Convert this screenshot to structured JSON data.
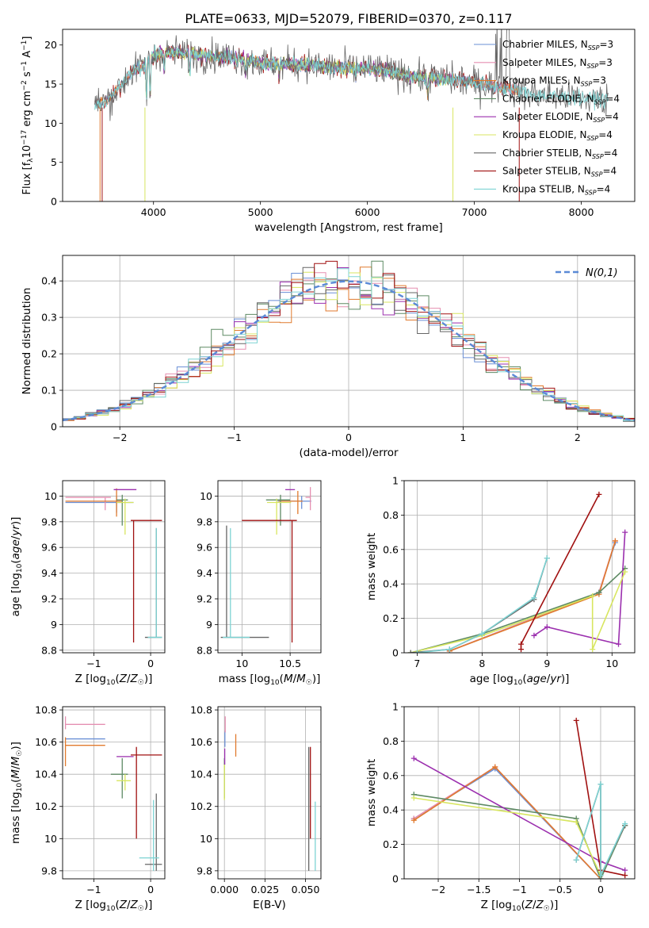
{
  "figure_title": "PLATE=0633, MJD=52079, FIBERID=0370, z=0.117",
  "series_colors": [
    "#6a8fd6",
    "#e58fb1",
    "#e07a2e",
    "#5e8a64",
    "#9b2fae",
    "#d8e660",
    "#666666",
    "#a01010",
    "#7dd3d3"
  ],
  "legend_labels": [
    "Chabrier MILES, N_SSP=3",
    "Salpeter MILES, N_SSP=3",
    "Kroupa MILES, N_SSP=3",
    "Chabrier ELODIE, N_SSP=4",
    "Salpeter ELODIE, N_SSP=4",
    "Kroupa ELODIE, N_SSP=4",
    "Chabrier STELIB, N_SSP=4",
    "Salpeter STELIB, N_SSP=4",
    "Kroupa STELIB, N_SSP=4"
  ],
  "chart_data": [
    {
      "id": "spectrum",
      "type": "line",
      "xlabel": "wavelength [Angstrom, rest frame]",
      "ylabel": "Flux [f_λ 10^-17 erg cm^-2 s^-1 A^-1]",
      "xlim": [
        3150,
        8500
      ],
      "ylim": [
        0,
        22
      ],
      "xticks": [
        4000,
        5000,
        6000,
        7000,
        8000
      ],
      "yticks": [
        0,
        5,
        10,
        15,
        20
      ],
      "grid": false,
      "legend": "top-right",
      "continuum": {
        "x": [
          3450,
          3600,
          3800,
          3900,
          4000,
          4100,
          4300,
          4500,
          4700,
          4900,
          5000,
          5200,
          5400,
          5600,
          5800,
          6000,
          6200,
          6400,
          6600,
          6800,
          7000,
          7200,
          7400,
          7600,
          7800,
          8000,
          8200
        ],
        "y": [
          12.3,
          13.2,
          16.6,
          17.3,
          18.6,
          19.2,
          18.9,
          18.6,
          18.5,
          18.0,
          17.7,
          17.6,
          17.5,
          17.2,
          17.1,
          17.0,
          16.6,
          16.0,
          15.8,
          15.6,
          15.2,
          14.6,
          14.1,
          13.6,
          13.4,
          13.2,
          13.0
        ]
      }
    },
    {
      "id": "residuals",
      "type": "line",
      "xlabel": "(data-model)/error",
      "ylabel": "Normed distribution",
      "xlim": [
        -2.5,
        2.5
      ],
      "ylim": [
        0,
        0.47
      ],
      "xticks": [
        -2,
        -1,
        0,
        1,
        2
      ],
      "yticks": [
        0.0,
        0.1,
        0.2,
        0.3,
        0.4
      ],
      "grid": true,
      "legend": "top-right",
      "reference_label": "N(0,1)"
    },
    {
      "id": "z-age",
      "type": "scatter",
      "xlabel": "Z [log10(Z/Z☉)]",
      "ylabel": "age [log10(age/yr)]",
      "xlim": [
        -1.55,
        0.25
      ],
      "ylim": [
        8.78,
        10.12
      ],
      "xticks": [
        -1,
        0
      ],
      "yticks": [
        8.8,
        9.0,
        9.2,
        9.4,
        9.6,
        9.8,
        10.0
      ],
      "grid": true,
      "points": [
        {
          "x": -0.6,
          "y": 9.95,
          "xerr": [
            0.9,
            0.3
          ],
          "yerr": [
            0.08,
            0.05
          ],
          "series": 0
        },
        {
          "x": -0.8,
          "y": 9.99,
          "xerr": [
            0.7,
            0.1
          ],
          "yerr": [
            0.1,
            0.0
          ],
          "series": 1
        },
        {
          "x": -0.6,
          "y": 9.96,
          "xerr": [
            0.9,
            0.1
          ],
          "yerr": [
            0.12,
            0.1
          ],
          "series": 2
        },
        {
          "x": -0.5,
          "y": 9.97,
          "xerr": [
            0.1,
            0.1
          ],
          "yerr": [
            0.2,
            0.04
          ],
          "series": 3
        },
        {
          "x": -0.45,
          "y": 10.05,
          "xerr": [
            0.2,
            0.2
          ],
          "yerr": [
            0.0,
            0.0
          ],
          "series": 4
        },
        {
          "x": -0.45,
          "y": 9.95,
          "xerr": [
            0.15,
            0.15
          ],
          "yerr": [
            0.25,
            0.03
          ],
          "series": 5
        },
        {
          "x": 0.1,
          "y": 8.9,
          "xerr": [
            0.2,
            0.1
          ],
          "yerr": [
            0.0,
            0.85
          ],
          "series": 6
        },
        {
          "x": -0.3,
          "y": 9.81,
          "xerr": [
            0.05,
            0.5
          ],
          "yerr": [
            0.95,
            0.0
          ],
          "series": 7
        },
        {
          "x": 0.1,
          "y": 8.9,
          "xerr": [
            0.15,
            0.1
          ],
          "yerr": [
            0.0,
            0.85
          ],
          "series": 8
        }
      ]
    },
    {
      "id": "mass-age",
      "type": "scatter",
      "xlabel": "mass [log10(M/M☉)]",
      "ylabel": "",
      "xlim": [
        9.75,
        10.82
      ],
      "ylim": [
        8.78,
        10.12
      ],
      "xticks": [
        10.0,
        10.5
      ],
      "yticks": [
        8.8,
        9.0,
        9.2,
        9.4,
        9.6,
        9.8,
        10.0
      ],
      "grid": true,
      "points": [
        {
          "x": 10.62,
          "y": 9.96,
          "xerr": [
            0.25,
            0.1
          ],
          "yerr": [
            0.06,
            0.04
          ],
          "series": 0
        },
        {
          "x": 10.71,
          "y": 9.99,
          "xerr": [
            0.05,
            0.0
          ],
          "yerr": [
            0.1,
            0.08
          ],
          "series": 1
        },
        {
          "x": 10.58,
          "y": 9.96,
          "xerr": [
            0.2,
            0.05
          ],
          "yerr": [
            0.1,
            0.08
          ],
          "series": 2
        },
        {
          "x": 10.4,
          "y": 9.97,
          "xerr": [
            0.15,
            0.1
          ],
          "yerr": [
            0.2,
            0.04
          ],
          "series": 3
        },
        {
          "x": 10.5,
          "y": 10.05,
          "xerr": [
            0.05,
            0.05
          ],
          "yerr": [
            0.0,
            0.0
          ],
          "series": 4
        },
        {
          "x": 10.36,
          "y": 9.95,
          "xerr": [
            0.1,
            0.15
          ],
          "yerr": [
            0.25,
            0.03
          ],
          "series": 5
        },
        {
          "x": 9.84,
          "y": 8.9,
          "xerr": [
            0.06,
            0.44
          ],
          "yerr": [
            0.0,
            0.87
          ],
          "series": 6
        },
        {
          "x": 10.52,
          "y": 9.81,
          "xerr": [
            0.52,
            0.05
          ],
          "yerr": [
            0.95,
            0.0
          ],
          "series": 7
        },
        {
          "x": 9.88,
          "y": 8.9,
          "xerr": [
            0.08,
            0.2
          ],
          "yerr": [
            0.0,
            0.85
          ],
          "series": 8
        }
      ]
    },
    {
      "id": "age-weight",
      "type": "line",
      "xlabel": "age [log10(age/yr)]",
      "ylabel": "mass weight",
      "xlim": [
        6.8,
        10.35
      ],
      "ylim": [
        0,
        1.0
      ],
      "xticks": [
        7,
        8,
        9,
        10
      ],
      "yticks": [
        0.0,
        0.2,
        0.4,
        0.6,
        0.8,
        1.0
      ],
      "grid": true,
      "series": [
        {
          "x": [
            7.5,
            9.8,
            10.05
          ],
          "y": [
            0.01,
            0.35,
            0.64
          ]
        },
        {
          "x": [
            7.5,
            9.8,
            10.05
          ],
          "y": [
            0.01,
            0.35,
            0.65
          ]
        },
        {
          "x": [
            7.5,
            9.8,
            10.05
          ],
          "y": [
            0.01,
            0.34,
            0.65
          ]
        },
        {
          "x": [
            6.9,
            8.0,
            9.8,
            10.2
          ],
          "y": [
            0.0,
            0.11,
            0.35,
            0.49
          ]
        },
        {
          "x": [
            8.8,
            9.0,
            10.1,
            10.2
          ],
          "y": [
            0.1,
            0.15,
            0.05,
            0.7
          ]
        },
        {
          "x": [
            6.9,
            8.0,
            9.7,
            9.7,
            10.2
          ],
          "y": [
            0.0,
            0.1,
            0.33,
            0.02,
            0.47
          ]
        },
        {
          "x": [
            6.9,
            7.5,
            8.0,
            8.8,
            9.0
          ],
          "y": [
            0.0,
            0.02,
            0.11,
            0.31,
            0.55
          ]
        },
        {
          "x": [
            8.6,
            8.6,
            9.8
          ],
          "y": [
            0.02,
            0.05,
            0.92
          ]
        },
        {
          "x": [
            7.0,
            7.5,
            8.0,
            8.8,
            9.0
          ],
          "y": [
            0.0,
            0.02,
            0.11,
            0.32,
            0.55
          ]
        }
      ]
    },
    {
      "id": "z-mass",
      "type": "scatter",
      "xlabel": "Z [log10(Z/Z☉)]",
      "ylabel": "mass [log10(M/M☉)]",
      "xlim": [
        -1.55,
        0.25
      ],
      "ylim": [
        9.75,
        10.82
      ],
      "xticks": [
        -1,
        0
      ],
      "yticks": [
        9.8,
        10.0,
        10.2,
        10.4,
        10.6,
        10.8
      ],
      "grid": true,
      "points": [
        {
          "x": -1.5,
          "y": 10.62,
          "xerr": [
            0.0,
            0.7
          ],
          "yerr": [
            0.0,
            0.0
          ],
          "series": 0
        },
        {
          "x": -1.5,
          "y": 10.71,
          "xerr": [
            0.0,
            0.7
          ],
          "yerr": [
            0.03,
            0.05
          ],
          "series": 1
        },
        {
          "x": -1.5,
          "y": 10.58,
          "xerr": [
            0.0,
            0.7
          ],
          "yerr": [
            0.13,
            0.05
          ],
          "series": 2
        },
        {
          "x": -0.5,
          "y": 10.4,
          "xerr": [
            0.2,
            0.1
          ],
          "yerr": [
            0.15,
            0.1
          ],
          "series": 3
        },
        {
          "x": -0.4,
          "y": 10.51,
          "xerr": [
            0.2,
            0.1
          ],
          "yerr": [
            0.0,
            0.0
          ],
          "series": 4
        },
        {
          "x": -0.45,
          "y": 10.36,
          "xerr": [
            0.15,
            0.1
          ],
          "yerr": [
            0.06,
            0.04
          ],
          "series": 5
        },
        {
          "x": 0.1,
          "y": 9.84,
          "xerr": [
            0.2,
            0.1
          ],
          "yerr": [
            0.04,
            0.44
          ],
          "series": 6
        },
        {
          "x": -0.25,
          "y": 10.52,
          "xerr": [
            0.1,
            0.45
          ],
          "yerr": [
            0.52,
            0.05
          ],
          "series": 7
        },
        {
          "x": 0.05,
          "y": 9.88,
          "xerr": [
            0.25,
            0.1
          ],
          "yerr": [
            0.08,
            0.36
          ],
          "series": 8
        }
      ]
    },
    {
      "id": "ebv-mass",
      "type": "scatter",
      "xlabel": "E(B-V)",
      "ylabel": "",
      "xlim": [
        -0.004,
        0.0595
      ],
      "ylim": [
        9.75,
        10.82
      ],
      "xticks": [
        0.0,
        0.025,
        0.05
      ],
      "xticklabels": [
        "0.000",
        "0.025",
        "0.050"
      ],
      "yticks": [
        9.8,
        10.0,
        10.2,
        10.4,
        10.6,
        10.8
      ],
      "grid": true,
      "points": [
        {
          "x": 0.0003,
          "y": 10.62,
          "xerr": [
            0,
            0
          ],
          "yerr": [
            0.05,
            0.05
          ],
          "series": 0
        },
        {
          "x": 0.0005,
          "y": 10.71,
          "xerr": [
            0,
            0
          ],
          "yerr": [
            0.05,
            0.05
          ],
          "series": 1
        },
        {
          "x": 0.007,
          "y": 10.58,
          "xerr": [
            0,
            0
          ],
          "yerr": [
            0.07,
            0.07
          ],
          "series": 2
        },
        {
          "x": 0.0,
          "y": 10.4,
          "xerr": [
            0,
            0
          ],
          "yerr": [
            0.15,
            0.1
          ],
          "series": 3
        },
        {
          "x": 0.0002,
          "y": 10.51,
          "xerr": [
            0,
            0
          ],
          "yerr": [
            0.05,
            0.05
          ],
          "series": 4
        },
        {
          "x": 0.0,
          "y": 10.36,
          "xerr": [
            0,
            0
          ],
          "yerr": [
            0.12,
            0.1
          ],
          "series": 5
        },
        {
          "x": 0.052,
          "y": 10.0,
          "xerr": [
            0,
            0
          ],
          "yerr": [
            0.2,
            0.57
          ],
          "series": 6
        },
        {
          "x": 0.053,
          "y": 10.52,
          "xerr": [
            0,
            0
          ],
          "yerr": [
            0.52,
            0.05
          ],
          "series": 7
        },
        {
          "x": 0.056,
          "y": 9.95,
          "xerr": [
            0,
            0
          ],
          "yerr": [
            0.15,
            0.28
          ],
          "series": 8
        }
      ]
    },
    {
      "id": "z-weight",
      "type": "line",
      "xlabel": "Z [log10(Z/Z☉)]",
      "ylabel": "mass weight",
      "xlim": [
        -2.42,
        0.42
      ],
      "ylim": [
        0,
        1.0
      ],
      "xticks": [
        -2.0,
        -1.5,
        -1.0,
        -0.5,
        0.0
      ],
      "yticks": [
        0.0,
        0.2,
        0.4,
        0.6,
        0.8,
        1.0
      ],
      "grid": true,
      "series": [
        {
          "x": [
            -2.3,
            -1.3,
            0.0
          ],
          "y": [
            0.35,
            0.64,
            0.0
          ]
        },
        {
          "x": [
            -2.3,
            -1.3,
            0.0
          ],
          "y": [
            0.35,
            0.65,
            0.0
          ]
        },
        {
          "x": [
            -2.3,
            -1.3,
            0.0
          ],
          "y": [
            0.34,
            0.65,
            0.0
          ]
        },
        {
          "x": [
            -2.3,
            -0.3,
            0.0,
            0.3
          ],
          "y": [
            0.49,
            0.35,
            0.0,
            0.31
          ]
        },
        {
          "x": [
            -2.3,
            0.0,
            0.3
          ],
          "y": [
            0.7,
            0.1,
            0.05
          ]
        },
        {
          "x": [
            -2.3,
            -0.3,
            0.0,
            0.3
          ],
          "y": [
            0.47,
            0.33,
            0.02,
            0.31
          ]
        },
        {
          "x": [
            -0.3,
            0.0,
            0.0,
            0.3
          ],
          "y": [
            0.11,
            0.55,
            0.02,
            0.31
          ]
        },
        {
          "x": [
            -0.3,
            0.0,
            0.3
          ],
          "y": [
            0.92,
            0.05,
            0.02
          ]
        },
        {
          "x": [
            -0.3,
            0.0,
            0.0,
            0.3
          ],
          "y": [
            0.11,
            0.55,
            0.02,
            0.32
          ]
        }
      ]
    }
  ]
}
